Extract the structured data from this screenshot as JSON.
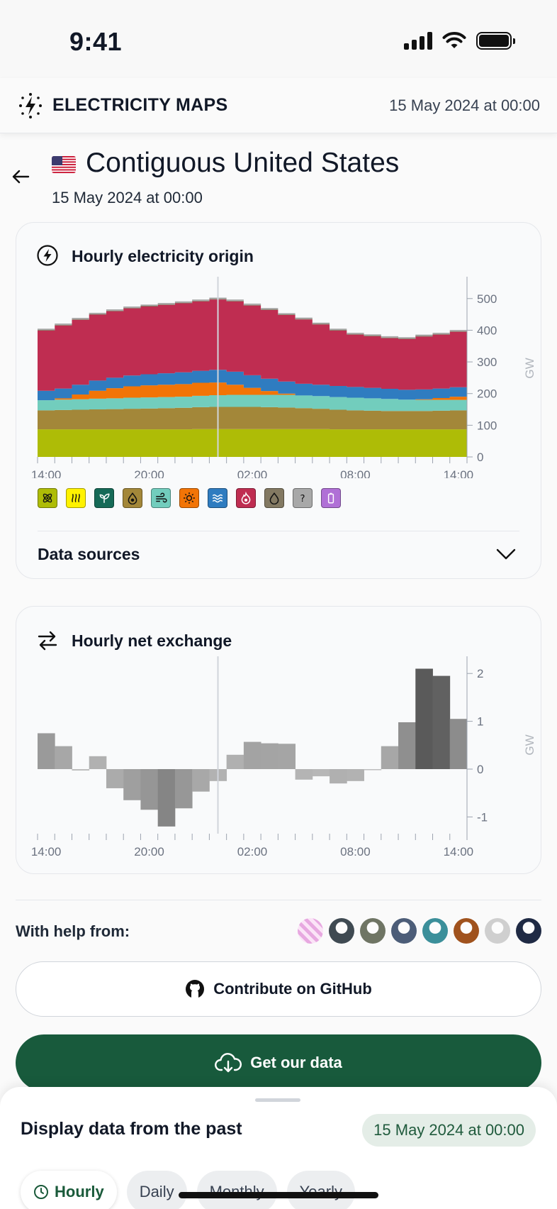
{
  "status_bar": {
    "time": "9:41"
  },
  "header": {
    "brand": "ELECTRICITY MAPS",
    "date": "15 May 2024 at 00:00"
  },
  "zone": {
    "title": "Contiguous United States",
    "date": "15 May 2024 at 00:00",
    "flag": "us-flag"
  },
  "origin_card": {
    "title": "Hourly electricity origin",
    "data_sources_label": "Data sources",
    "legend": [
      {
        "name": "nuclear",
        "color": "#aebc06",
        "icon": "atom-icon"
      },
      {
        "name": "geothermal",
        "color": "#fff200",
        "icon": "heat-waves-icon"
      },
      {
        "name": "biomass",
        "color": "#166a57",
        "icon": "sprout-icon"
      },
      {
        "name": "coal",
        "color": "#a38739",
        "icon": "coal-drop-icon"
      },
      {
        "name": "wind",
        "color": "#72cdbd",
        "icon": "wind-icon"
      },
      {
        "name": "solar",
        "color": "#f27406",
        "icon": "sun-icon"
      },
      {
        "name": "hydro",
        "color": "#2f7cc0",
        "icon": "water-waves-icon"
      },
      {
        "name": "gas",
        "color": "#bf2d51",
        "icon": "flame-icon"
      },
      {
        "name": "oil",
        "color": "#837962",
        "icon": "oil-drop-icon"
      },
      {
        "name": "unknown",
        "color": "#a8a8a8",
        "icon": "question-icon"
      },
      {
        "name": "battery storage",
        "color": "#b070d6",
        "icon": "battery-icon"
      }
    ]
  },
  "exchange_card": {
    "title": "Hourly net exchange"
  },
  "chart_data": [
    {
      "type": "area",
      "title": "Hourly electricity origin",
      "ylabel": "GW",
      "ylim": [
        0,
        560
      ],
      "x_ticks": [
        "14:00",
        "20:00",
        "02:00",
        "08:00",
        "14:00"
      ],
      "y_ticks": [
        0,
        100,
        200,
        300,
        400,
        500
      ],
      "x": [
        0,
        1,
        2,
        3,
        4,
        5,
        6,
        7,
        8,
        9,
        10,
        11,
        12,
        13,
        14,
        15,
        16,
        17,
        18,
        19,
        20,
        21,
        22,
        23,
        24
      ],
      "selected_index": 10,
      "series": [
        {
          "name": "nuclear",
          "color": "#aebc06",
          "values": [
            87,
            87,
            87,
            87,
            87,
            87,
            87,
            87,
            87,
            88,
            88,
            88,
            88,
            88,
            88,
            88,
            88,
            87,
            87,
            87,
            87,
            87,
            87,
            87,
            87
          ]
        },
        {
          "name": "coal",
          "color": "#a38739",
          "values": [
            60,
            61,
            62,
            63,
            64,
            65,
            66,
            67,
            68,
            69,
            70,
            70,
            70,
            69,
            68,
            66,
            64,
            62,
            60,
            59,
            58,
            58,
            58,
            59,
            60
          ]
        },
        {
          "name": "wind",
          "color": "#72cdbd",
          "values": [
            32,
            33,
            33,
            34,
            34,
            35,
            35,
            35,
            35,
            36,
            37,
            38,
            38,
            39,
            40,
            40,
            40,
            40,
            40,
            39,
            38,
            36,
            35,
            34,
            33
          ]
        },
        {
          "name": "solar",
          "color": "#f27406",
          "values": [
            0,
            4,
            15,
            25,
            32,
            36,
            38,
            39,
            40,
            41,
            40,
            32,
            22,
            12,
            4,
            0,
            0,
            0,
            0,
            0,
            0,
            0,
            2,
            6,
            10
          ]
        },
        {
          "name": "hydro",
          "color": "#2f7cc0",
          "values": [
            30,
            31,
            31,
            32,
            33,
            34,
            35,
            36,
            37,
            38,
            40,
            41,
            40,
            39,
            38,
            37,
            36,
            35,
            34,
            33,
            32,
            31,
            31,
            30,
            30
          ]
        },
        {
          "name": "gas",
          "color": "#bf2d51",
          "values": [
            190,
            199,
            205,
            208,
            210,
            212,
            214,
            216,
            218,
            219,
            222,
            222,
            220,
            217,
            210,
            203,
            190,
            175,
            165,
            163,
            160,
            160,
            167,
            170,
            175
          ]
        },
        {
          "name": "oil",
          "color": "#837962",
          "values": [
            2,
            2,
            2,
            2,
            2,
            2,
            2,
            2,
            2,
            2,
            2,
            2,
            2,
            2,
            2,
            2,
            2,
            2,
            2,
            2,
            2,
            2,
            2,
            2,
            2
          ]
        },
        {
          "name": "battery storage",
          "color": "#b070d6",
          "values": [
            0,
            0,
            0,
            0,
            0,
            0,
            0,
            0,
            0,
            0,
            0,
            0,
            0,
            0,
            0,
            0,
            0,
            0,
            0,
            0,
            0,
            0,
            0,
            0,
            0
          ]
        },
        {
          "name": "unknown",
          "color": "#a8a8a8",
          "values": [
            4,
            4,
            4,
            4,
            4,
            4,
            4,
            4,
            4,
            4,
            4,
            4,
            4,
            4,
            4,
            4,
            4,
            4,
            4,
            4,
            4,
            4,
            4,
            4,
            4
          ]
        }
      ]
    },
    {
      "type": "bar",
      "title": "Hourly net exchange",
      "ylabel": "GW",
      "ylim": [
        -1.35,
        2.3
      ],
      "x_ticks": [
        "14:00",
        "20:00",
        "02:00",
        "08:00",
        "14:00"
      ],
      "y_ticks": [
        -1,
        0,
        1,
        2
      ],
      "selected_index": 10,
      "values": [
        0.75,
        0.48,
        -0.03,
        0.27,
        -0.4,
        -0.65,
        -0.85,
        -1.2,
        -0.82,
        -0.47,
        -0.25,
        0.3,
        0.57,
        0.54,
        0.53,
        -0.22,
        -0.15,
        -0.3,
        -0.25,
        -0.02,
        0.48,
        0.98,
        2.1,
        1.95,
        1.05
      ]
    }
  ],
  "help": {
    "label": "With help from:",
    "avatars": [
      "#e7a8e0",
      "#3f4a52",
      "#6f7564",
      "#4c5d78",
      "#3b8f9a",
      "#a0521d",
      "#cfcfcf",
      "#1f2a44"
    ]
  },
  "buttons": {
    "github": "Contribute on GitHub",
    "get_data": "Get our data"
  },
  "sheet": {
    "title": "Display data from the past",
    "date": "15 May 2024 at 00:00",
    "tabs": [
      "Hourly",
      "Daily",
      "Monthly",
      "Yearly"
    ]
  }
}
